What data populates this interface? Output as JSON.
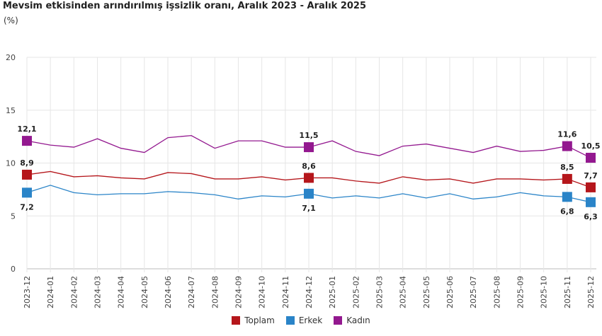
{
  "chart_data": {
    "type": "line",
    "title": "Mevsim etkisinden arındırılmış işsizlik oranı, Aralık 2023 - Aralık 2025",
    "ylabel": "(%)",
    "ylim": [
      0,
      20
    ],
    "yticks": [
      0,
      5,
      10,
      15,
      20
    ],
    "grid": true,
    "legend": "bottom",
    "categories": [
      "2023-12",
      "2024-01",
      "2024-02",
      "2024-03",
      "2024-04",
      "2024-05",
      "2024-06",
      "2024-07",
      "2024-08",
      "2024-09",
      "2024-10",
      "2024-11",
      "2024-12",
      "2025-01",
      "2025-02",
      "2025-03",
      "2025-04",
      "2025-05",
      "2025-06",
      "2025-07",
      "2025-08",
      "2025-09",
      "2025-10",
      "2025-11",
      "2025-12"
    ],
    "labeled_indices": [
      0,
      12,
      23,
      24
    ],
    "series": [
      {
        "name": "Toplam",
        "color": "#b5161b",
        "values": [
          8.9,
          9.2,
          8.7,
          8.8,
          8.6,
          8.5,
          9.1,
          9.0,
          8.5,
          8.5,
          8.7,
          8.4,
          8.6,
          8.6,
          8.3,
          8.1,
          8.7,
          8.4,
          8.5,
          8.1,
          8.5,
          8.5,
          8.4,
          8.5,
          7.7
        ],
        "labels": [
          "8,9",
          "8,6",
          "8,5",
          "7,7"
        ]
      },
      {
        "name": "Erkek",
        "color": "#2a84c8",
        "values": [
          7.2,
          7.9,
          7.2,
          7.0,
          7.1,
          7.1,
          7.3,
          7.2,
          7.0,
          6.6,
          6.9,
          6.8,
          7.1,
          6.7,
          6.9,
          6.7,
          7.1,
          6.7,
          7.1,
          6.6,
          6.8,
          7.2,
          6.9,
          6.8,
          6.3
        ],
        "labels": [
          "7,2",
          "7,1",
          "6,8",
          "6,3"
        ]
      },
      {
        "name": "Kadın",
        "color": "#93188f",
        "values": [
          12.1,
          11.7,
          11.5,
          12.3,
          11.4,
          11.0,
          12.4,
          12.6,
          11.4,
          12.1,
          12.1,
          11.5,
          11.5,
          12.1,
          11.1,
          10.7,
          11.6,
          11.8,
          11.4,
          11.0,
          11.6,
          11.1,
          11.2,
          11.6,
          10.5
        ],
        "labels": [
          "12,1",
          "11,5",
          "11,6",
          "10,5"
        ]
      }
    ]
  }
}
